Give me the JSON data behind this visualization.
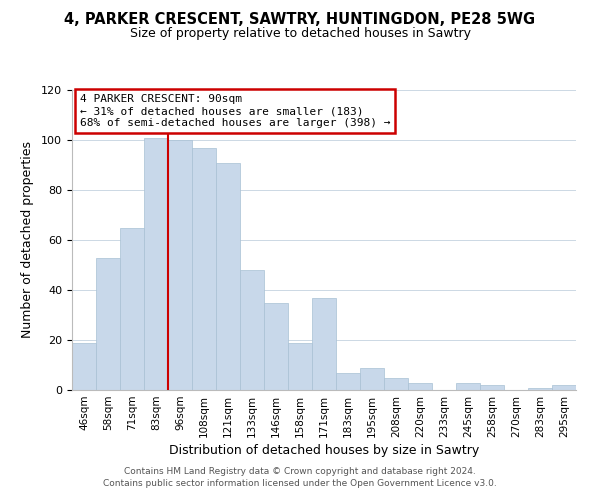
{
  "title": "4, PARKER CRESCENT, SAWTRY, HUNTINGDON, PE28 5WG",
  "subtitle": "Size of property relative to detached houses in Sawtry",
  "xlabel": "Distribution of detached houses by size in Sawtry",
  "ylabel": "Number of detached properties",
  "bar_color": "#c8d8ea",
  "bar_edgecolor": "#a8c0d4",
  "categories": [
    "46sqm",
    "58sqm",
    "71sqm",
    "83sqm",
    "96sqm",
    "108sqm",
    "121sqm",
    "133sqm",
    "146sqm",
    "158sqm",
    "171sqm",
    "183sqm",
    "195sqm",
    "208sqm",
    "220sqm",
    "233sqm",
    "245sqm",
    "258sqm",
    "270sqm",
    "283sqm",
    "295sqm"
  ],
  "values": [
    19,
    53,
    65,
    101,
    100,
    97,
    91,
    48,
    35,
    19,
    37,
    7,
    9,
    5,
    3,
    0,
    3,
    2,
    0,
    1,
    2
  ],
  "ylim": [
    0,
    120
  ],
  "yticks": [
    0,
    20,
    40,
    60,
    80,
    100,
    120
  ],
  "vline_color": "#cc0000",
  "annotation_lines": [
    "4 PARKER CRESCENT: 90sqm",
    "← 31% of detached houses are smaller (183)",
    "68% of semi-detached houses are larger (398) →"
  ],
  "footer_line1": "Contains HM Land Registry data © Crown copyright and database right 2024.",
  "footer_line2": "Contains public sector information licensed under the Open Government Licence v3.0.",
  "background_color": "#ffffff",
  "grid_color": "#ccd8e4"
}
